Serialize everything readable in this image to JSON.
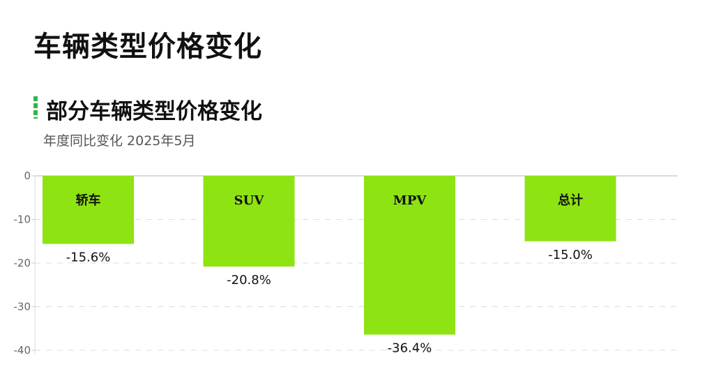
{
  "page": {
    "title": "车辆类型价格变化"
  },
  "chart_data": {
    "type": "bar",
    "title": "部分车辆类型价格变化",
    "subtitle": "年度同比变化 2025年5月",
    "categories": [
      "轿车",
      "SUV",
      "MPV",
      "总计"
    ],
    "values": [
      -15.6,
      -20.8,
      -36.4,
      -15.0
    ],
    "value_labels": [
      "-15.6%",
      "-20.8%",
      "-36.4%",
      "-15.0%"
    ],
    "y_ticks": [
      0,
      -10,
      -20,
      -30,
      -40
    ],
    "y_tick_labels": [
      "0",
      "-10",
      "-20",
      "-30",
      "-40"
    ],
    "ylim": [
      -40,
      0
    ],
    "grid": true,
    "legend": "none",
    "bar_color": "#8ee312",
    "marker_color": "#2db84a"
  }
}
